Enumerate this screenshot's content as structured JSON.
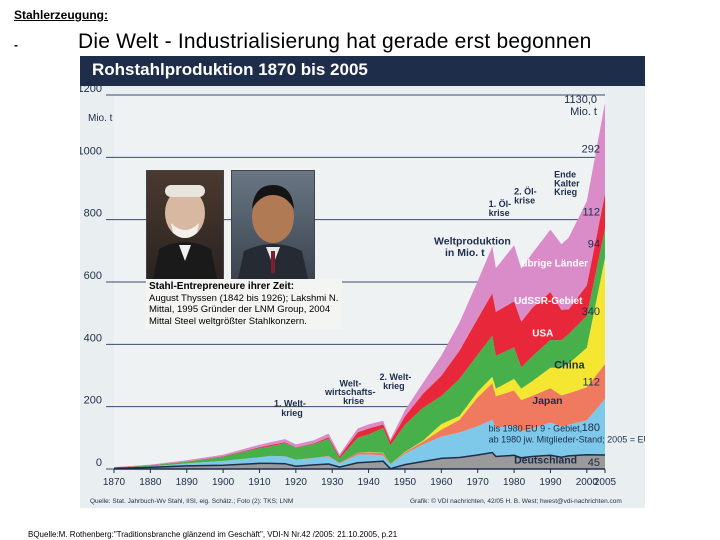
{
  "page": {
    "section_label": "Stahlerzeugung:",
    "dash": "-",
    "headline": "Die Welt - Industrialisierung hat gerade erst begonnen",
    "source_citation": "BQuelle:M. Rothenberg:\"Traditionsbranche glänzend im Geschäft\", VDI-N Nr.42 /2005: 21.10.2005, p.21"
  },
  "caption": {
    "title": "Stahl-Entrepreneure ihrer Zeit:",
    "body": "August Thyssen (1842 bis 1926); Lakshmi N. Mittal, 1995 Gründer der LNM Group, 2004 Mittal Steel weltgrößter Stahlkonzern."
  },
  "chart_data": {
    "type": "area",
    "title": "Rohstahlproduktion 1870 bis 2005",
    "ylabel": "Mio. t",
    "xlim": [
      1870,
      2005
    ],
    "ylim": [
      0,
      1200
    ],
    "yticks": [
      "0",
      "200",
      "400",
      "600",
      "800",
      "1000",
      "1200"
    ],
    "xticks": [
      "1870",
      "1880",
      "1890",
      "1900",
      "1910",
      "1920",
      "1930",
      "1940",
      "1950",
      "1960",
      "1970",
      "1980",
      "1990",
      "2000",
      "2005"
    ],
    "x": [
      1870,
      1880,
      1890,
      1900,
      1910,
      1913,
      1917,
      1920,
      1925,
      1929,
      1932,
      1937,
      1940,
      1944,
      1946,
      1950,
      1955,
      1960,
      1965,
      1970,
      1974,
      1975,
      1980,
      1982,
      1985,
      1990,
      1993,
      1995,
      2000,
      2005
    ],
    "series": [
      {
        "name": "Deutschland",
        "color": "#9a9a9a",
        "values": [
          2,
          5,
          10,
          12,
          18,
          18,
          17,
          9,
          13,
          16,
          6,
          20,
          22,
          25,
          1,
          14,
          24,
          34,
          37,
          45,
          53,
          40,
          44,
          36,
          40,
          44,
          38,
          42,
          46,
          45
        ]
      },
      {
        "name": "EU 9 / EU 25",
        "color": "#7ec8ea",
        "values": [
          1,
          3,
          8,
          14,
          20,
          24,
          23,
          20,
          22,
          24,
          12,
          26,
          25,
          18,
          14,
          35,
          55,
          70,
          80,
          92,
          105,
          92,
          97,
          85,
          90,
          105,
          98,
          100,
          110,
          180
        ]
      },
      {
        "name": "Japan",
        "color": "#f07a60",
        "values": [
          0,
          0,
          0,
          0,
          0,
          0,
          1,
          1,
          1,
          2,
          2,
          6,
          7,
          8,
          1,
          5,
          9,
          22,
          41,
          93,
          117,
          102,
          111,
          100,
          105,
          110,
          100,
          101,
          106,
          112
        ]
      },
      {
        "name": "China",
        "color": "#f5e632",
        "values": [
          0,
          0,
          0,
          0,
          0,
          0,
          0,
          0,
          0,
          0,
          0,
          0,
          1,
          1,
          0,
          1,
          3,
          18,
          12,
          18,
          21,
          24,
          37,
          37,
          47,
          66,
          89,
          95,
          127,
          340
        ]
      },
      {
        "name": "USA",
        "color": "#47b04a",
        "values": [
          1,
          3,
          5,
          13,
          29,
          31,
          42,
          39,
          44,
          55,
          14,
          48,
          56,
          80,
          60,
          87,
          106,
          90,
          119,
          119,
          132,
          105,
          101,
          68,
          80,
          89,
          88,
          95,
          102,
          94
        ]
      },
      {
        "name": "UdSSR",
        "color": "#e8283a",
        "values": [
          1,
          1,
          1,
          2,
          3,
          4,
          3,
          1,
          2,
          5,
          6,
          18,
          19,
          11,
          13,
          27,
          45,
          65,
          91,
          116,
          136,
          141,
          148,
          147,
          155,
          154,
          98,
          79,
          98,
          112
        ]
      },
      {
        "name": "übrige Länder",
        "color": "#d98cc8",
        "values": [
          1,
          2,
          4,
          5,
          8,
          9,
          10,
          9,
          10,
          12,
          7,
          12,
          13,
          12,
          6,
          20,
          35,
          65,
          90,
          120,
          150,
          140,
          180,
          170,
          175,
          200,
          210,
          230,
          270,
          292
        ]
      }
    ],
    "labels": {
      "world": "Weltproduktion in Mio. t",
      "others": "übrige Länder",
      "ussr": "UdSSR-Gebiet",
      "usa": "USA",
      "china": "China",
      "japan": "Japan",
      "eu_line1": "bis 1980 EU 9 - Gebiet,",
      "eu_line2": "ab 1980 jw. Mitglieder-Stand; 2005 = EU 25",
      "germany": "Deutschland"
    },
    "end_values": [
      "45",
      "180",
      "112",
      "340",
      "94",
      "112",
      "292"
    ],
    "total_label": "1130,0",
    "total_unit": "Mio. t",
    "annotations": [
      "1. Welt-",
      "krieg",
      "Welt-",
      "wirtschafts-",
      "krise",
      "2. Welt-",
      "krieg",
      "1. Öl-",
      "krise",
      "2. Öl-",
      "krise",
      "Ende",
      "Kalter",
      "Krieg"
    ],
    "footer_left": "Quelle: Stat. Jahrbuch-Wv Stahl, IISI, eig. Schätz.; Foto (2): TKS; LNM",
    "footer_right": "Grafik: © VDI nachrichten, 42/05 H. B. West; hwest@vdi-nachrichten.com"
  }
}
